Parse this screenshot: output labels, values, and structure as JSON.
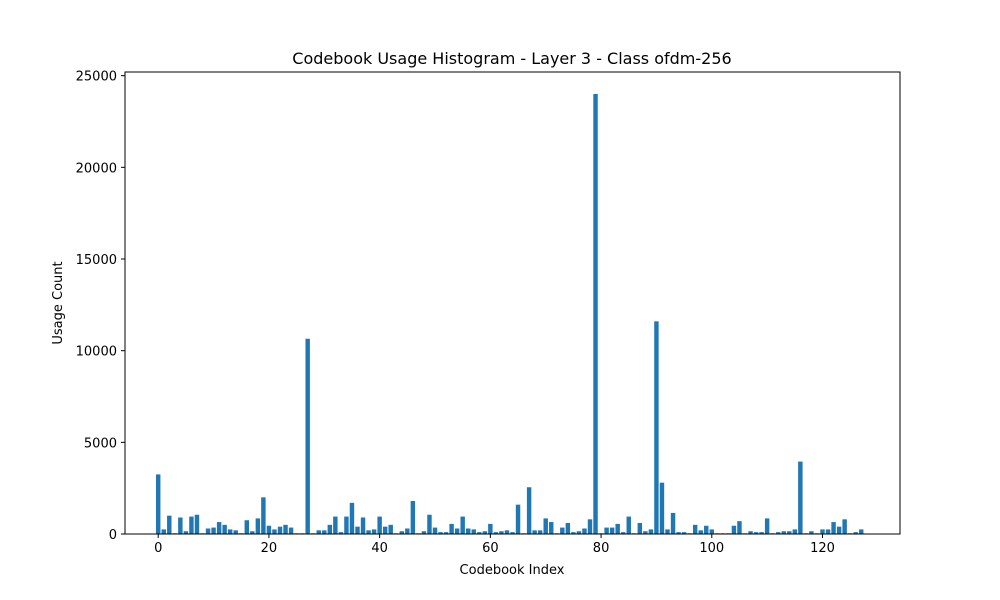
{
  "chart_data": {
    "type": "bar",
    "title": "Codebook Usage Histogram - Layer 3 - Class ofdm-256",
    "xlabel": "Codebook Index",
    "ylabel": "Usage Count",
    "xlim": [
      -6,
      134
    ],
    "ylim": [
      0,
      25200
    ],
    "xticks": [
      "0",
      "20",
      "40",
      "60",
      "80",
      "100",
      "120"
    ],
    "yticks": [
      "0",
      "5000",
      "10000",
      "15000",
      "20000",
      "25000"
    ],
    "bar_color": "#1f77b4",
    "grid": false,
    "x": [
      0,
      1,
      2,
      3,
      4,
      5,
      6,
      7,
      8,
      9,
      10,
      11,
      12,
      13,
      14,
      15,
      16,
      17,
      18,
      19,
      20,
      21,
      22,
      23,
      24,
      25,
      26,
      27,
      28,
      29,
      30,
      31,
      32,
      33,
      34,
      35,
      36,
      37,
      38,
      39,
      40,
      41,
      42,
      43,
      44,
      45,
      46,
      47,
      48,
      49,
      50,
      51,
      52,
      53,
      54,
      55,
      56,
      57,
      58,
      59,
      60,
      61,
      62,
      63,
      64,
      65,
      66,
      67,
      68,
      69,
      70,
      71,
      72,
      73,
      74,
      75,
      76,
      77,
      78,
      79,
      80,
      81,
      82,
      83,
      84,
      85,
      86,
      87,
      88,
      89,
      90,
      91,
      92,
      93,
      94,
      95,
      96,
      97,
      98,
      99,
      100,
      101,
      102,
      103,
      104,
      105,
      106,
      107,
      108,
      109,
      110,
      111,
      112,
      113,
      114,
      115,
      116,
      117,
      118,
      119,
      120,
      121,
      122,
      123,
      124,
      125,
      126,
      127
    ],
    "values": [
      3250,
      250,
      1000,
      40,
      900,
      150,
      950,
      1050,
      40,
      300,
      350,
      650,
      500,
      250,
      200,
      40,
      750,
      150,
      850,
      2000,
      450,
      250,
      400,
      500,
      350,
      40,
      40,
      10650,
      40,
      200,
      200,
      500,
      950,
      100,
      950,
      1700,
      400,
      900,
      200,
      250,
      950,
      400,
      500,
      40,
      150,
      300,
      1800,
      40,
      150,
      1050,
      350,
      100,
      100,
      550,
      300,
      950,
      300,
      250,
      100,
      150,
      550,
      100,
      150,
      200,
      100,
      1600,
      40,
      2550,
      200,
      200,
      850,
      650,
      40,
      350,
      600,
      100,
      150,
      300,
      800,
      24000,
      40,
      350,
      350,
      550,
      100,
      950,
      40,
      600,
      150,
      250,
      11600,
      2800,
      250,
      1150,
      100,
      100,
      40,
      500,
      200,
      450,
      250,
      40,
      40,
      40,
      450,
      700,
      40,
      150,
      100,
      100,
      850,
      40,
      100,
      150,
      150,
      250,
      3950,
      40,
      150,
      40,
      250,
      250,
      650,
      400,
      800,
      40,
      100,
      250
    ]
  }
}
